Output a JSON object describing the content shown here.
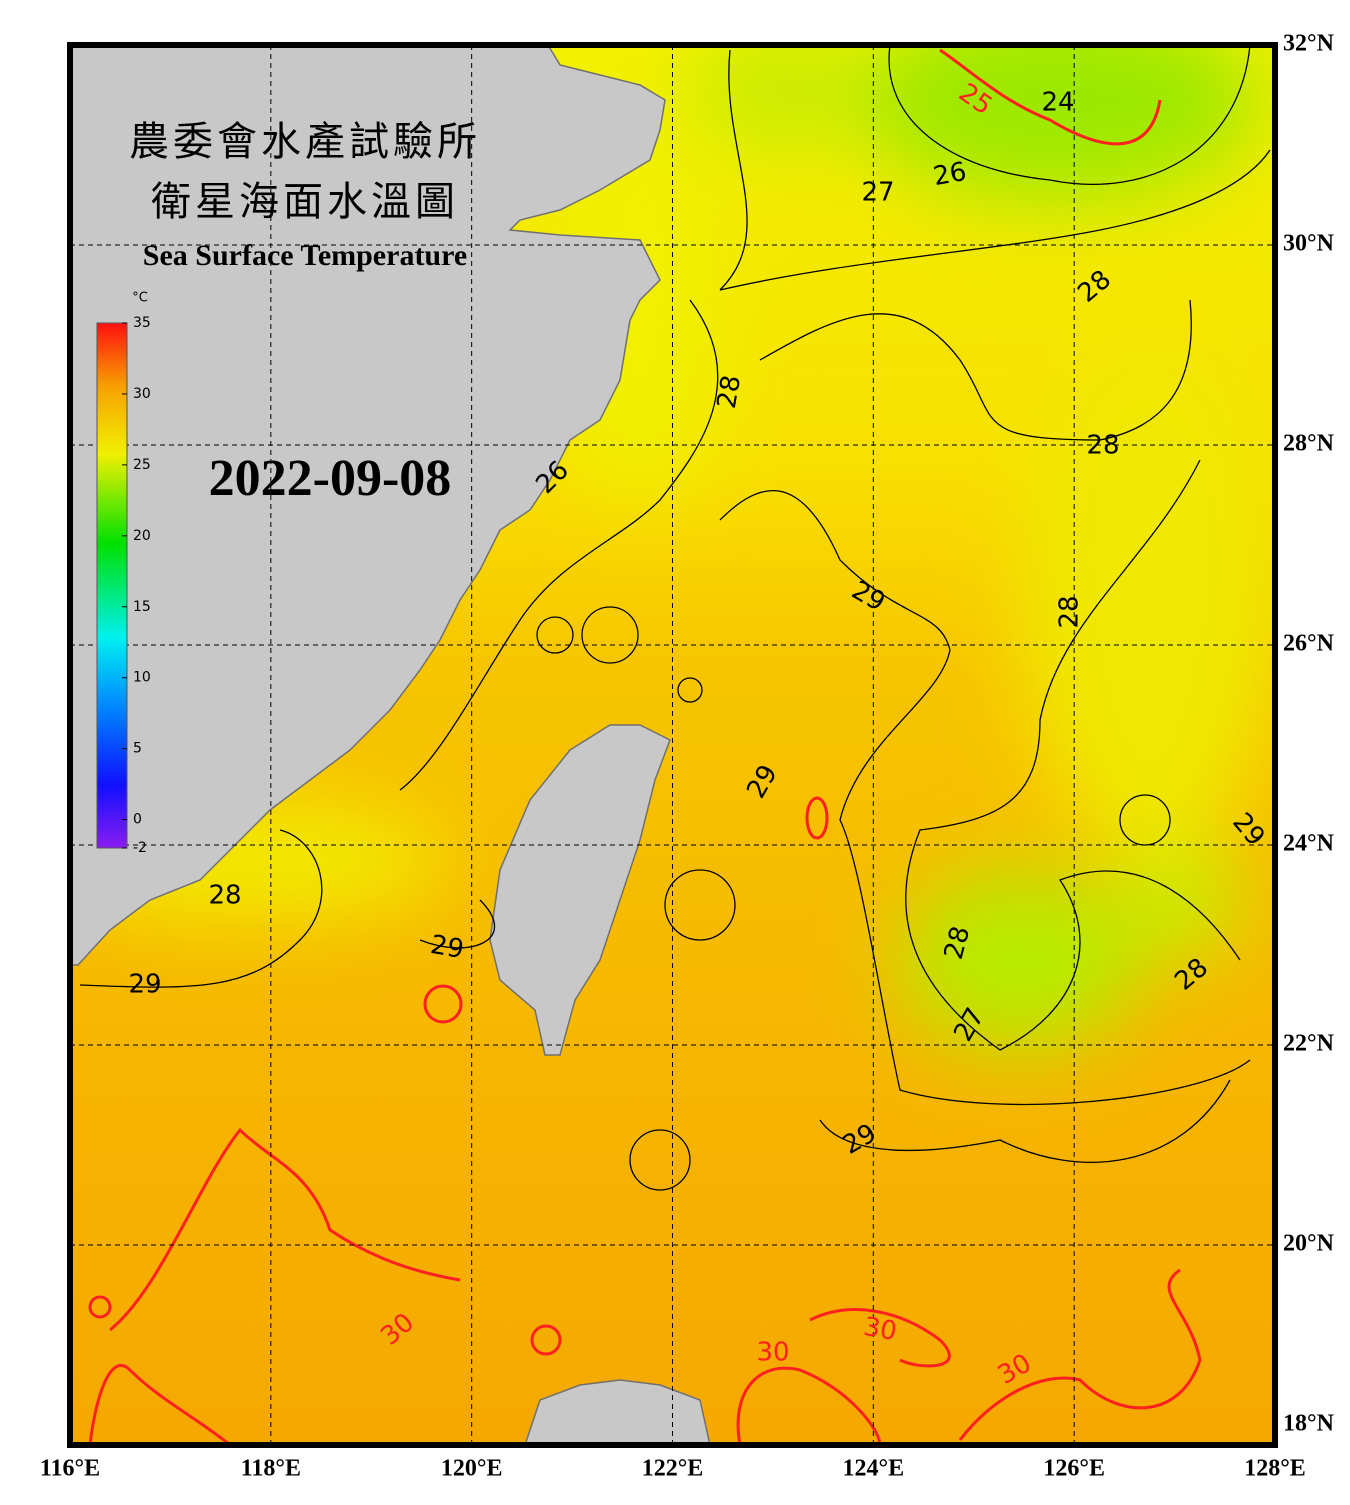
{
  "map": {
    "title_zh": [
      "農委會水產試驗所",
      "衛星海面水溫圖"
    ],
    "title_en": "Sea Surface Temperature",
    "date": "2022-09-08",
    "colorbar": {
      "unit": "°C",
      "range": [
        -2,
        35
      ],
      "ticks": [
        35,
        30,
        25,
        20,
        15,
        10,
        5,
        0,
        -2
      ]
    },
    "lon_range": [
      116,
      128
    ],
    "lat_range": [
      18,
      32
    ],
    "lon_ticks": [
      {
        "value": 116,
        "label": "116°E"
      },
      {
        "value": 118,
        "label": "118°E"
      },
      {
        "value": 120,
        "label": "120°E"
      },
      {
        "value": 122,
        "label": "122°E"
      },
      {
        "value": 124,
        "label": "124°E"
      },
      {
        "value": 126,
        "label": "126°E"
      },
      {
        "value": 128,
        "label": "128°E"
      }
    ],
    "lat_ticks": [
      {
        "value": 18,
        "label": "18°N"
      },
      {
        "value": 20,
        "label": "20°N"
      },
      {
        "value": 22,
        "label": "22°N"
      },
      {
        "value": 24,
        "label": "24°N"
      },
      {
        "value": 26,
        "label": "26°N"
      },
      {
        "value": 28,
        "label": "28°N"
      },
      {
        "value": 30,
        "label": "30°N"
      },
      {
        "value": 32,
        "label": "32°N"
      }
    ],
    "contour_labels": [
      "25",
      "24",
      "26",
      "27",
      "28",
      "28",
      "28",
      "28",
      "29",
      "29",
      "29",
      "29",
      "28",
      "29",
      "28",
      "28",
      "27",
      "29",
      "30",
      "30",
      "30",
      "30",
      "26"
    ]
  }
}
